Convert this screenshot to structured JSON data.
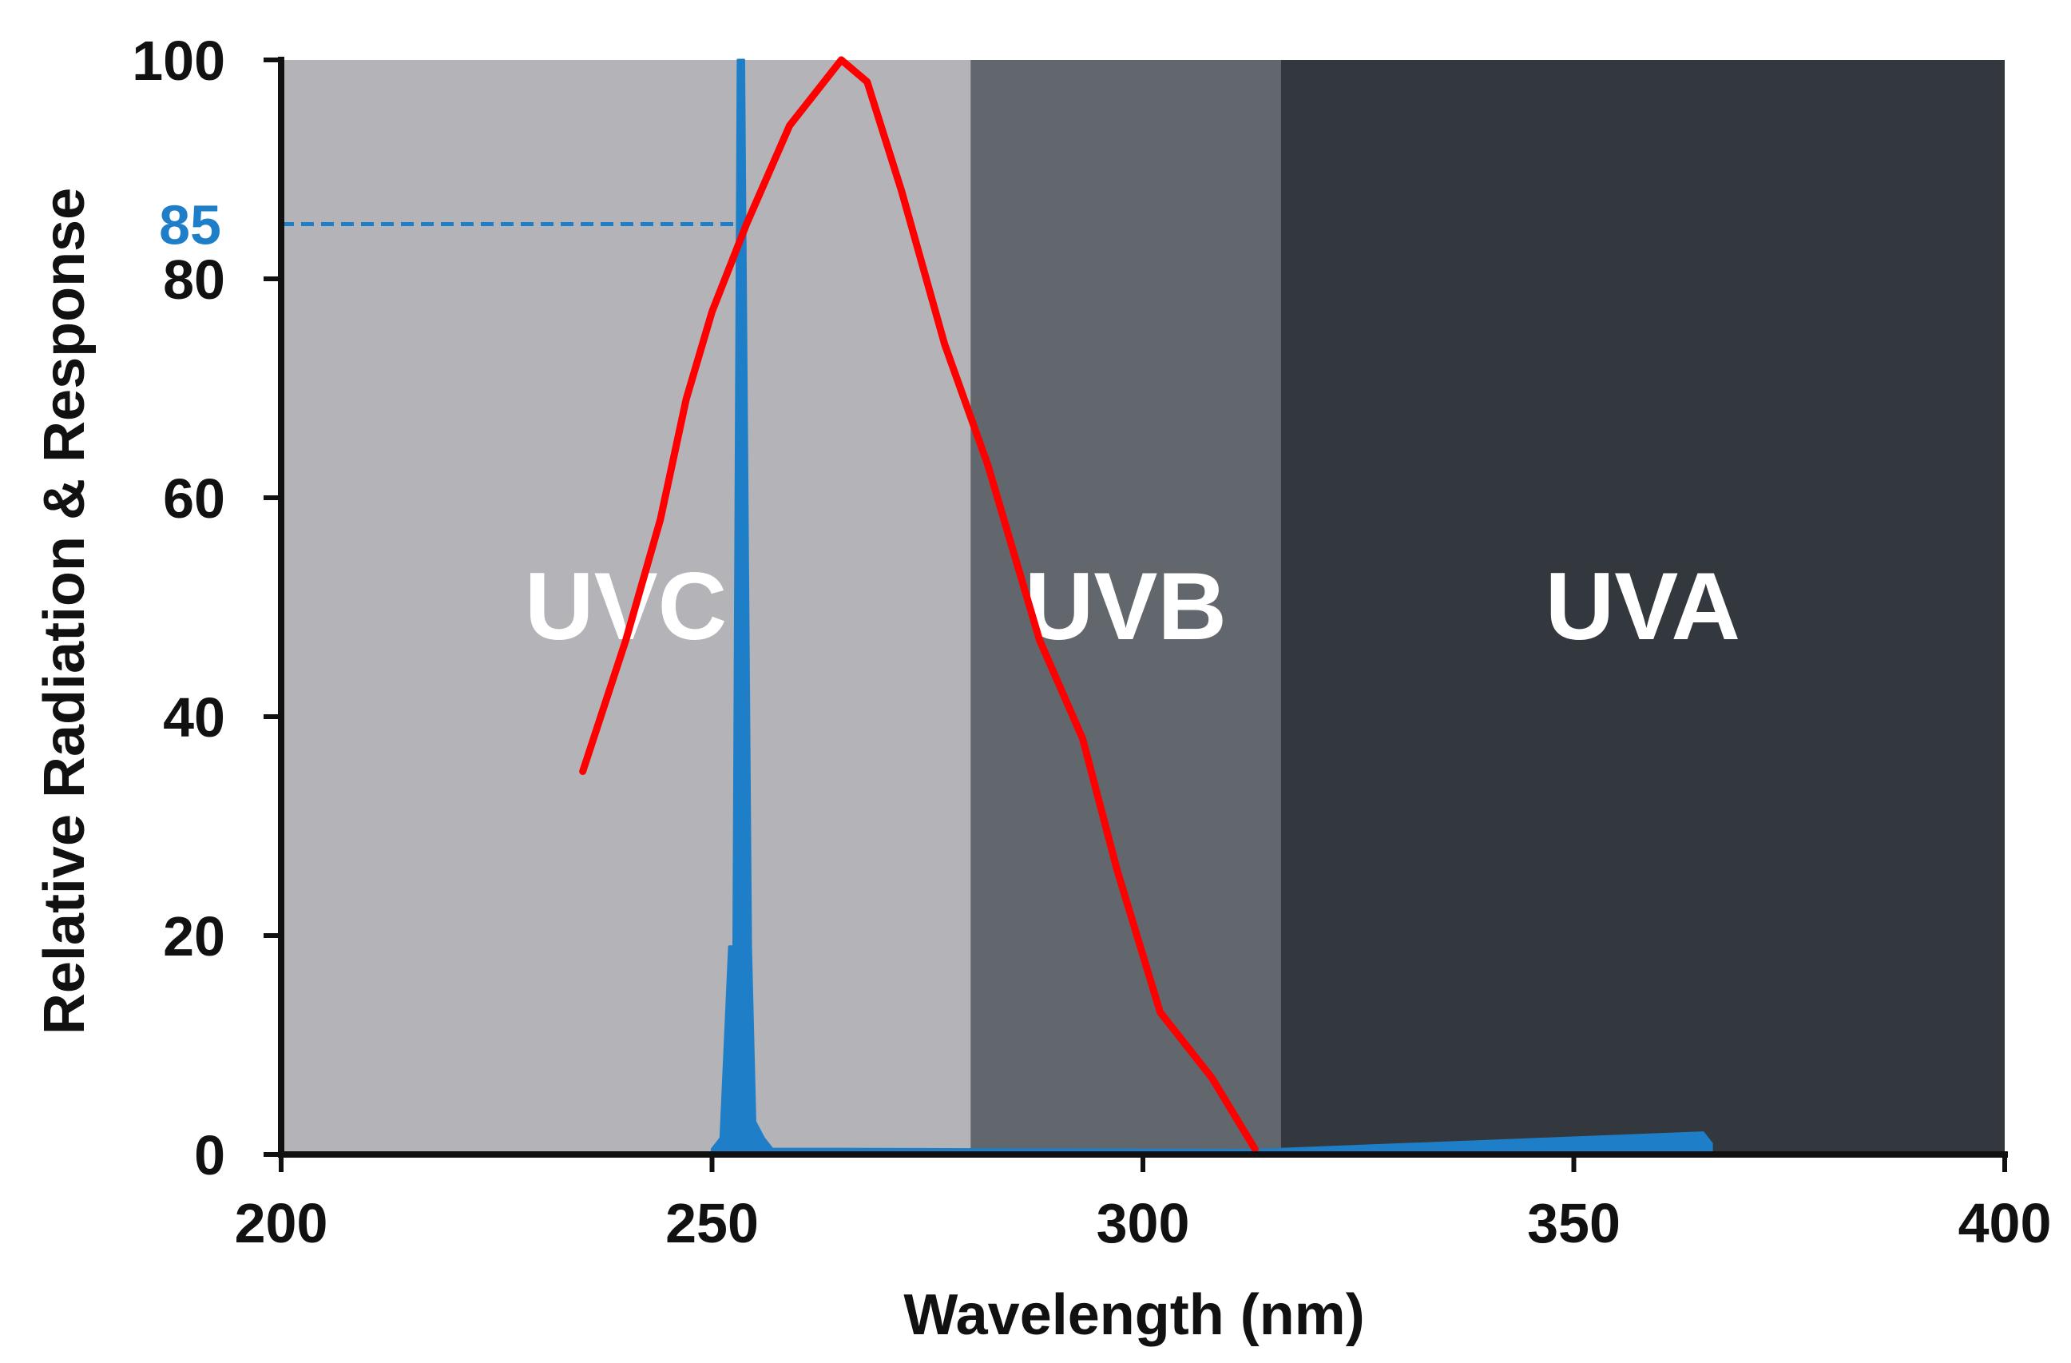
{
  "chart_data": {
    "type": "line",
    "title": "",
    "xlabel": "Wavelength (nm)",
    "ylabel": "Relative Radiation & Response",
    "xlim": [
      200,
      400
    ],
    "ylim": [
      0,
      100
    ],
    "xticks": [
      200,
      250,
      300,
      350,
      400
    ],
    "yticks": [
      0,
      20,
      40,
      60,
      80,
      100
    ],
    "grid": false,
    "legend": "none",
    "bands": [
      {
        "label": "UVC",
        "x_start": 200,
        "x_end": 280,
        "color": "#b3b3b8"
      },
      {
        "label": "UVB",
        "x_start": 280,
        "x_end": 316,
        "color": "#62676d"
      },
      {
        "label": "UVA",
        "x_start": 316,
        "x_end": 400,
        "color": "#33383e"
      }
    ],
    "reference_line": {
      "y": 85,
      "x_end": 253.7,
      "label": "85",
      "color": "#1e7fc8"
    },
    "series": [
      {
        "kind": "line",
        "color": "#ff0000",
        "x": [
          235,
          240,
          244,
          247,
          250,
          254,
          259,
          265,
          268,
          272,
          277,
          282,
          288,
          293,
          297,
          302,
          308,
          313
        ],
        "y": [
          35,
          47,
          58,
          69,
          77,
          85,
          94,
          100,
          98,
          88,
          74,
          63,
          47,
          38,
          26,
          13,
          7,
          0.5
        ]
      },
      {
        "kind": "spectrum",
        "color": "#1e7fc8",
        "x": [
          250,
          251,
          252,
          252.5,
          253,
          253.7,
          254.5,
          255,
          256,
          257,
          265,
          313,
          365,
          366
        ],
        "y": [
          0.5,
          1.5,
          19,
          19,
          100,
          100,
          19,
          3,
          1.5,
          0.5,
          0.5,
          0.4,
          2,
          1
        ]
      }
    ]
  }
}
